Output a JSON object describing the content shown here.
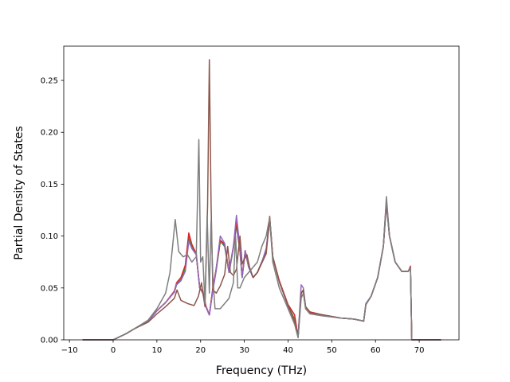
{
  "chart_data": {
    "type": "line",
    "title": "",
    "xlabel": "Frequency (THz)",
    "ylabel": "Partial Density of States",
    "xlim": [
      -11.3,
      79.1
    ],
    "ylim": [
      0.0,
      0.283
    ],
    "xticks": [
      -10,
      0,
      10,
      20,
      30,
      40,
      50,
      60,
      70
    ],
    "yticks": [
      0.0,
      0.05,
      0.1,
      0.15,
      0.2,
      0.25
    ],
    "ytick_labels": [
      "0.00",
      "0.05",
      "0.10",
      "0.15",
      "0.20",
      "0.25"
    ],
    "xtick_labels": [
      "−10",
      "0",
      "10",
      "20",
      "30",
      "40",
      "50",
      "60",
      "70"
    ],
    "grid": false,
    "legend": "none",
    "series": [
      {
        "color": "#1f77b4",
        "x": [
          -7,
          0,
          1,
          3,
          5,
          8,
          10,
          12,
          14,
          14.5,
          15.5,
          16.5,
          17.3,
          18,
          19,
          19.8,
          20.5,
          21.2,
          22,
          22.8,
          23.5,
          24.5,
          25.5,
          26.5,
          27.5,
          28.2,
          29,
          29.5,
          30.2,
          31,
          32,
          33,
          34,
          35,
          35.8,
          36.5,
          38,
          40,
          41.5,
          42.3,
          43,
          43.5,
          44,
          45,
          48,
          52,
          55,
          57.3,
          57.8,
          59,
          60.5,
          61.8,
          62.5,
          63.2,
          64.5,
          66,
          67.5,
          68,
          68.3,
          75
        ],
        "y": [
          0,
          0,
          0.002,
          0.006,
          0.011,
          0.018,
          0.028,
          0.036,
          0.046,
          0.053,
          0.057,
          0.068,
          0.098,
          0.089,
          0.083,
          0.05,
          0.045,
          0.032,
          0.024,
          0.048,
          0.065,
          0.095,
          0.09,
          0.065,
          0.088,
          0.11,
          0.085,
          0.06,
          0.085,
          0.07,
          0.06,
          0.065,
          0.075,
          0.085,
          0.117,
          0.08,
          0.056,
          0.033,
          0.018,
          0.003,
          0.045,
          0.048,
          0.032,
          0.026,
          0.024,
          0.021,
          0.02,
          0.018,
          0.034,
          0.042,
          0.06,
          0.09,
          0.132,
          0.1,
          0.075,
          0.066,
          0.066,
          0.07,
          0,
          0
        ]
      },
      {
        "color": "#ff7f0e",
        "x": [
          -7,
          0,
          1,
          3,
          5,
          8,
          10,
          12,
          14,
          14.5,
          15.5,
          16.5,
          17.3,
          18,
          19,
          19.8,
          20.5,
          21.2,
          22,
          22.8,
          23.5,
          24.5,
          25.5,
          26.5,
          27.5,
          28.2,
          29,
          29.5,
          30.2,
          31,
          32,
          33,
          34,
          35,
          35.8,
          36.5,
          38,
          40,
          41.5,
          42.3,
          43,
          43.5,
          44,
          45,
          48,
          52,
          55,
          57.3,
          57.8,
          59,
          60.5,
          61.8,
          62.5,
          63.2,
          64.5,
          66,
          67.5,
          68,
          68.3,
          75
        ],
        "y": [
          0,
          0,
          0.002,
          0.006,
          0.011,
          0.018,
          0.028,
          0.036,
          0.046,
          0.054,
          0.058,
          0.07,
          0.1,
          0.09,
          0.082,
          0.05,
          0.046,
          0.032,
          0.024,
          0.049,
          0.066,
          0.095,
          0.091,
          0.065,
          0.089,
          0.112,
          0.086,
          0.06,
          0.085,
          0.07,
          0.06,
          0.065,
          0.075,
          0.086,
          0.118,
          0.08,
          0.056,
          0.033,
          0.02,
          0.003,
          0.045,
          0.048,
          0.032,
          0.026,
          0.024,
          0.021,
          0.02,
          0.018,
          0.034,
          0.042,
          0.06,
          0.09,
          0.133,
          0.1,
          0.075,
          0.066,
          0.066,
          0.07,
          0,
          0
        ]
      },
      {
        "color": "#2ca02c",
        "x": [
          -7,
          0,
          1,
          3,
          5,
          8,
          10,
          12,
          14,
          14.5,
          15.5,
          16.5,
          17.3,
          18,
          19,
          19.8,
          20.5,
          21.2,
          22,
          22.8,
          23.5,
          24.5,
          25.5,
          26.5,
          27.5,
          28.2,
          29,
          29.5,
          30.2,
          31,
          32,
          33,
          34,
          35,
          35.8,
          36.5,
          38,
          40,
          41.5,
          42.3,
          43,
          43.5,
          44,
          45,
          48,
          52,
          55,
          57.3,
          57.8,
          59,
          60.5,
          61.8,
          62.5,
          63.2,
          64.5,
          66,
          67.5,
          68,
          68.3,
          75
        ],
        "y": [
          0,
          0,
          0.002,
          0.006,
          0.011,
          0.018,
          0.028,
          0.036,
          0.046,
          0.054,
          0.058,
          0.07,
          0.1,
          0.09,
          0.082,
          0.05,
          0.046,
          0.032,
          0.024,
          0.049,
          0.066,
          0.095,
          0.091,
          0.065,
          0.089,
          0.112,
          0.086,
          0.06,
          0.085,
          0.07,
          0.06,
          0.065,
          0.075,
          0.086,
          0.118,
          0.08,
          0.056,
          0.033,
          0.02,
          0.003,
          0.045,
          0.048,
          0.032,
          0.026,
          0.024,
          0.021,
          0.02,
          0.018,
          0.034,
          0.042,
          0.06,
          0.09,
          0.133,
          0.1,
          0.075,
          0.066,
          0.066,
          0.07,
          0,
          0
        ]
      },
      {
        "color": "#d62728",
        "x": [
          -7,
          0,
          1,
          3,
          5,
          8,
          10,
          12,
          14,
          14.5,
          15.5,
          16.5,
          17.3,
          18,
          19,
          19.8,
          20.5,
          21.2,
          22,
          22.8,
          23.5,
          24.5,
          25.5,
          26.5,
          27.5,
          28.2,
          29,
          29.5,
          30.2,
          31,
          32,
          33,
          34,
          35,
          35.8,
          36.5,
          38,
          40,
          41.5,
          42.3,
          43,
          43.5,
          44,
          45,
          48,
          52,
          55,
          57.3,
          57.8,
          59,
          60.5,
          61.8,
          62.5,
          63.2,
          64.5,
          66,
          67.5,
          68,
          68.3,
          75
        ],
        "y": [
          0,
          0,
          0.002,
          0.006,
          0.011,
          0.018,
          0.028,
          0.036,
          0.047,
          0.055,
          0.06,
          0.072,
          0.103,
          0.092,
          0.083,
          0.05,
          0.047,
          0.033,
          0.024,
          0.05,
          0.067,
          0.096,
          0.092,
          0.066,
          0.09,
          0.113,
          0.087,
          0.061,
          0.086,
          0.071,
          0.06,
          0.065,
          0.075,
          0.086,
          0.119,
          0.08,
          0.057,
          0.034,
          0.024,
          0.003,
          0.045,
          0.048,
          0.032,
          0.027,
          0.024,
          0.021,
          0.02,
          0.018,
          0.034,
          0.042,
          0.06,
          0.09,
          0.134,
          0.1,
          0.075,
          0.066,
          0.066,
          0.071,
          0,
          0
        ]
      },
      {
        "color": "#9467bd",
        "x": [
          -7,
          0,
          1,
          3,
          5,
          8,
          10,
          12,
          14,
          14.5,
          15.5,
          16.5,
          17.3,
          18,
          19,
          19.8,
          20.5,
          21.2,
          22,
          22.8,
          23.5,
          24.5,
          25.5,
          26.5,
          27.5,
          28.2,
          29,
          29.5,
          30.2,
          31,
          32,
          33,
          34,
          35,
          35.8,
          36.5,
          38,
          40,
          41.5,
          42.3,
          43,
          43.5,
          44,
          45,
          48,
          52,
          55,
          57.3,
          57.8,
          59,
          60.5,
          61.8,
          62.5,
          63.2,
          64.5,
          66,
          67.5,
          68,
          68.3,
          75
        ],
        "y": [
          0,
          0,
          0.002,
          0.006,
          0.011,
          0.018,
          0.028,
          0.036,
          0.046,
          0.054,
          0.057,
          0.066,
          0.095,
          0.088,
          0.082,
          0.05,
          0.045,
          0.032,
          0.024,
          0.047,
          0.066,
          0.1,
          0.093,
          0.065,
          0.09,
          0.12,
          0.088,
          0.06,
          0.086,
          0.07,
          0.06,
          0.065,
          0.075,
          0.088,
          0.115,
          0.08,
          0.056,
          0.033,
          0.018,
          0.003,
          0.053,
          0.05,
          0.032,
          0.026,
          0.024,
          0.021,
          0.02,
          0.018,
          0.035,
          0.042,
          0.06,
          0.09,
          0.13,
          0.1,
          0.075,
          0.066,
          0.066,
          0.07,
          0,
          0
        ]
      },
      {
        "color": "#8c564b",
        "x": [
          -7,
          0,
          1,
          3,
          5,
          8,
          10,
          12,
          14,
          14.6,
          15.5,
          17,
          18.5,
          19.5,
          20.2,
          21,
          21.6,
          22,
          22.4,
          22.8,
          23.6,
          24.5,
          25.5,
          26.2,
          26.8,
          27.5,
          28.2,
          29,
          29.5,
          30,
          30.6,
          31.2,
          32,
          33,
          34,
          35,
          35.8,
          36.5,
          38,
          40,
          41.5,
          42.3,
          43,
          43.5,
          44,
          45,
          48,
          52,
          55,
          57.3,
          57.8,
          59,
          60.5,
          61.8,
          62.5,
          63.2,
          64.5,
          66,
          67.5,
          68,
          68.3,
          75
        ],
        "y": [
          0,
          0,
          0.002,
          0.006,
          0.011,
          0.017,
          0.025,
          0.032,
          0.04,
          0.048,
          0.038,
          0.035,
          0.033,
          0.042,
          0.055,
          0.032,
          0.13,
          0.27,
          0.13,
          0.048,
          0.045,
          0.052,
          0.063,
          0.09,
          0.065,
          0.062,
          0.068,
          0.1,
          0.073,
          0.078,
          0.082,
          0.07,
          0.06,
          0.065,
          0.074,
          0.083,
          0.118,
          0.08,
          0.056,
          0.033,
          0.018,
          0.003,
          0.045,
          0.048,
          0.032,
          0.026,
          0.024,
          0.021,
          0.02,
          0.018,
          0.034,
          0.042,
          0.06,
          0.09,
          0.133,
          0.1,
          0.075,
          0.066,
          0.066,
          0.07,
          0,
          0
        ]
      },
      {
        "color": "#7f7f7f",
        "x": [
          -7,
          0,
          1,
          3,
          5,
          8,
          10,
          12,
          13,
          14.2,
          15,
          16,
          17,
          18,
          19,
          19.6,
          20,
          20.5,
          21,
          21.5,
          22,
          22.4,
          22.8,
          23.3,
          23.8,
          24.5,
          25.5,
          26.5,
          27.5,
          28,
          28.5,
          29,
          30,
          31,
          32,
          33,
          34,
          35,
          35.8,
          36.5,
          38,
          40,
          41.5,
          42.3,
          43,
          43.5,
          44,
          45,
          48,
          52,
          55,
          57.3,
          57.8,
          59,
          60.5,
          61.8,
          62.5,
          63.2,
          64.5,
          66,
          67.5,
          68,
          68.3,
          75
        ],
        "y": [
          0,
          0,
          0.002,
          0.006,
          0.011,
          0.019,
          0.03,
          0.045,
          0.065,
          0.116,
          0.085,
          0.08,
          0.082,
          0.075,
          0.08,
          0.193,
          0.075,
          0.08,
          0.035,
          0.12,
          0.045,
          0.115,
          0.06,
          0.03,
          0.03,
          0.03,
          0.035,
          0.04,
          0.055,
          0.1,
          0.05,
          0.05,
          0.06,
          0.065,
          0.07,
          0.075,
          0.09,
          0.1,
          0.118,
          0.075,
          0.05,
          0.03,
          0.015,
          0.002,
          0.04,
          0.045,
          0.03,
          0.025,
          0.023,
          0.021,
          0.02,
          0.018,
          0.034,
          0.042,
          0.06,
          0.09,
          0.138,
          0.1,
          0.075,
          0.066,
          0.066,
          0.07,
          0,
          0
        ]
      }
    ]
  }
}
